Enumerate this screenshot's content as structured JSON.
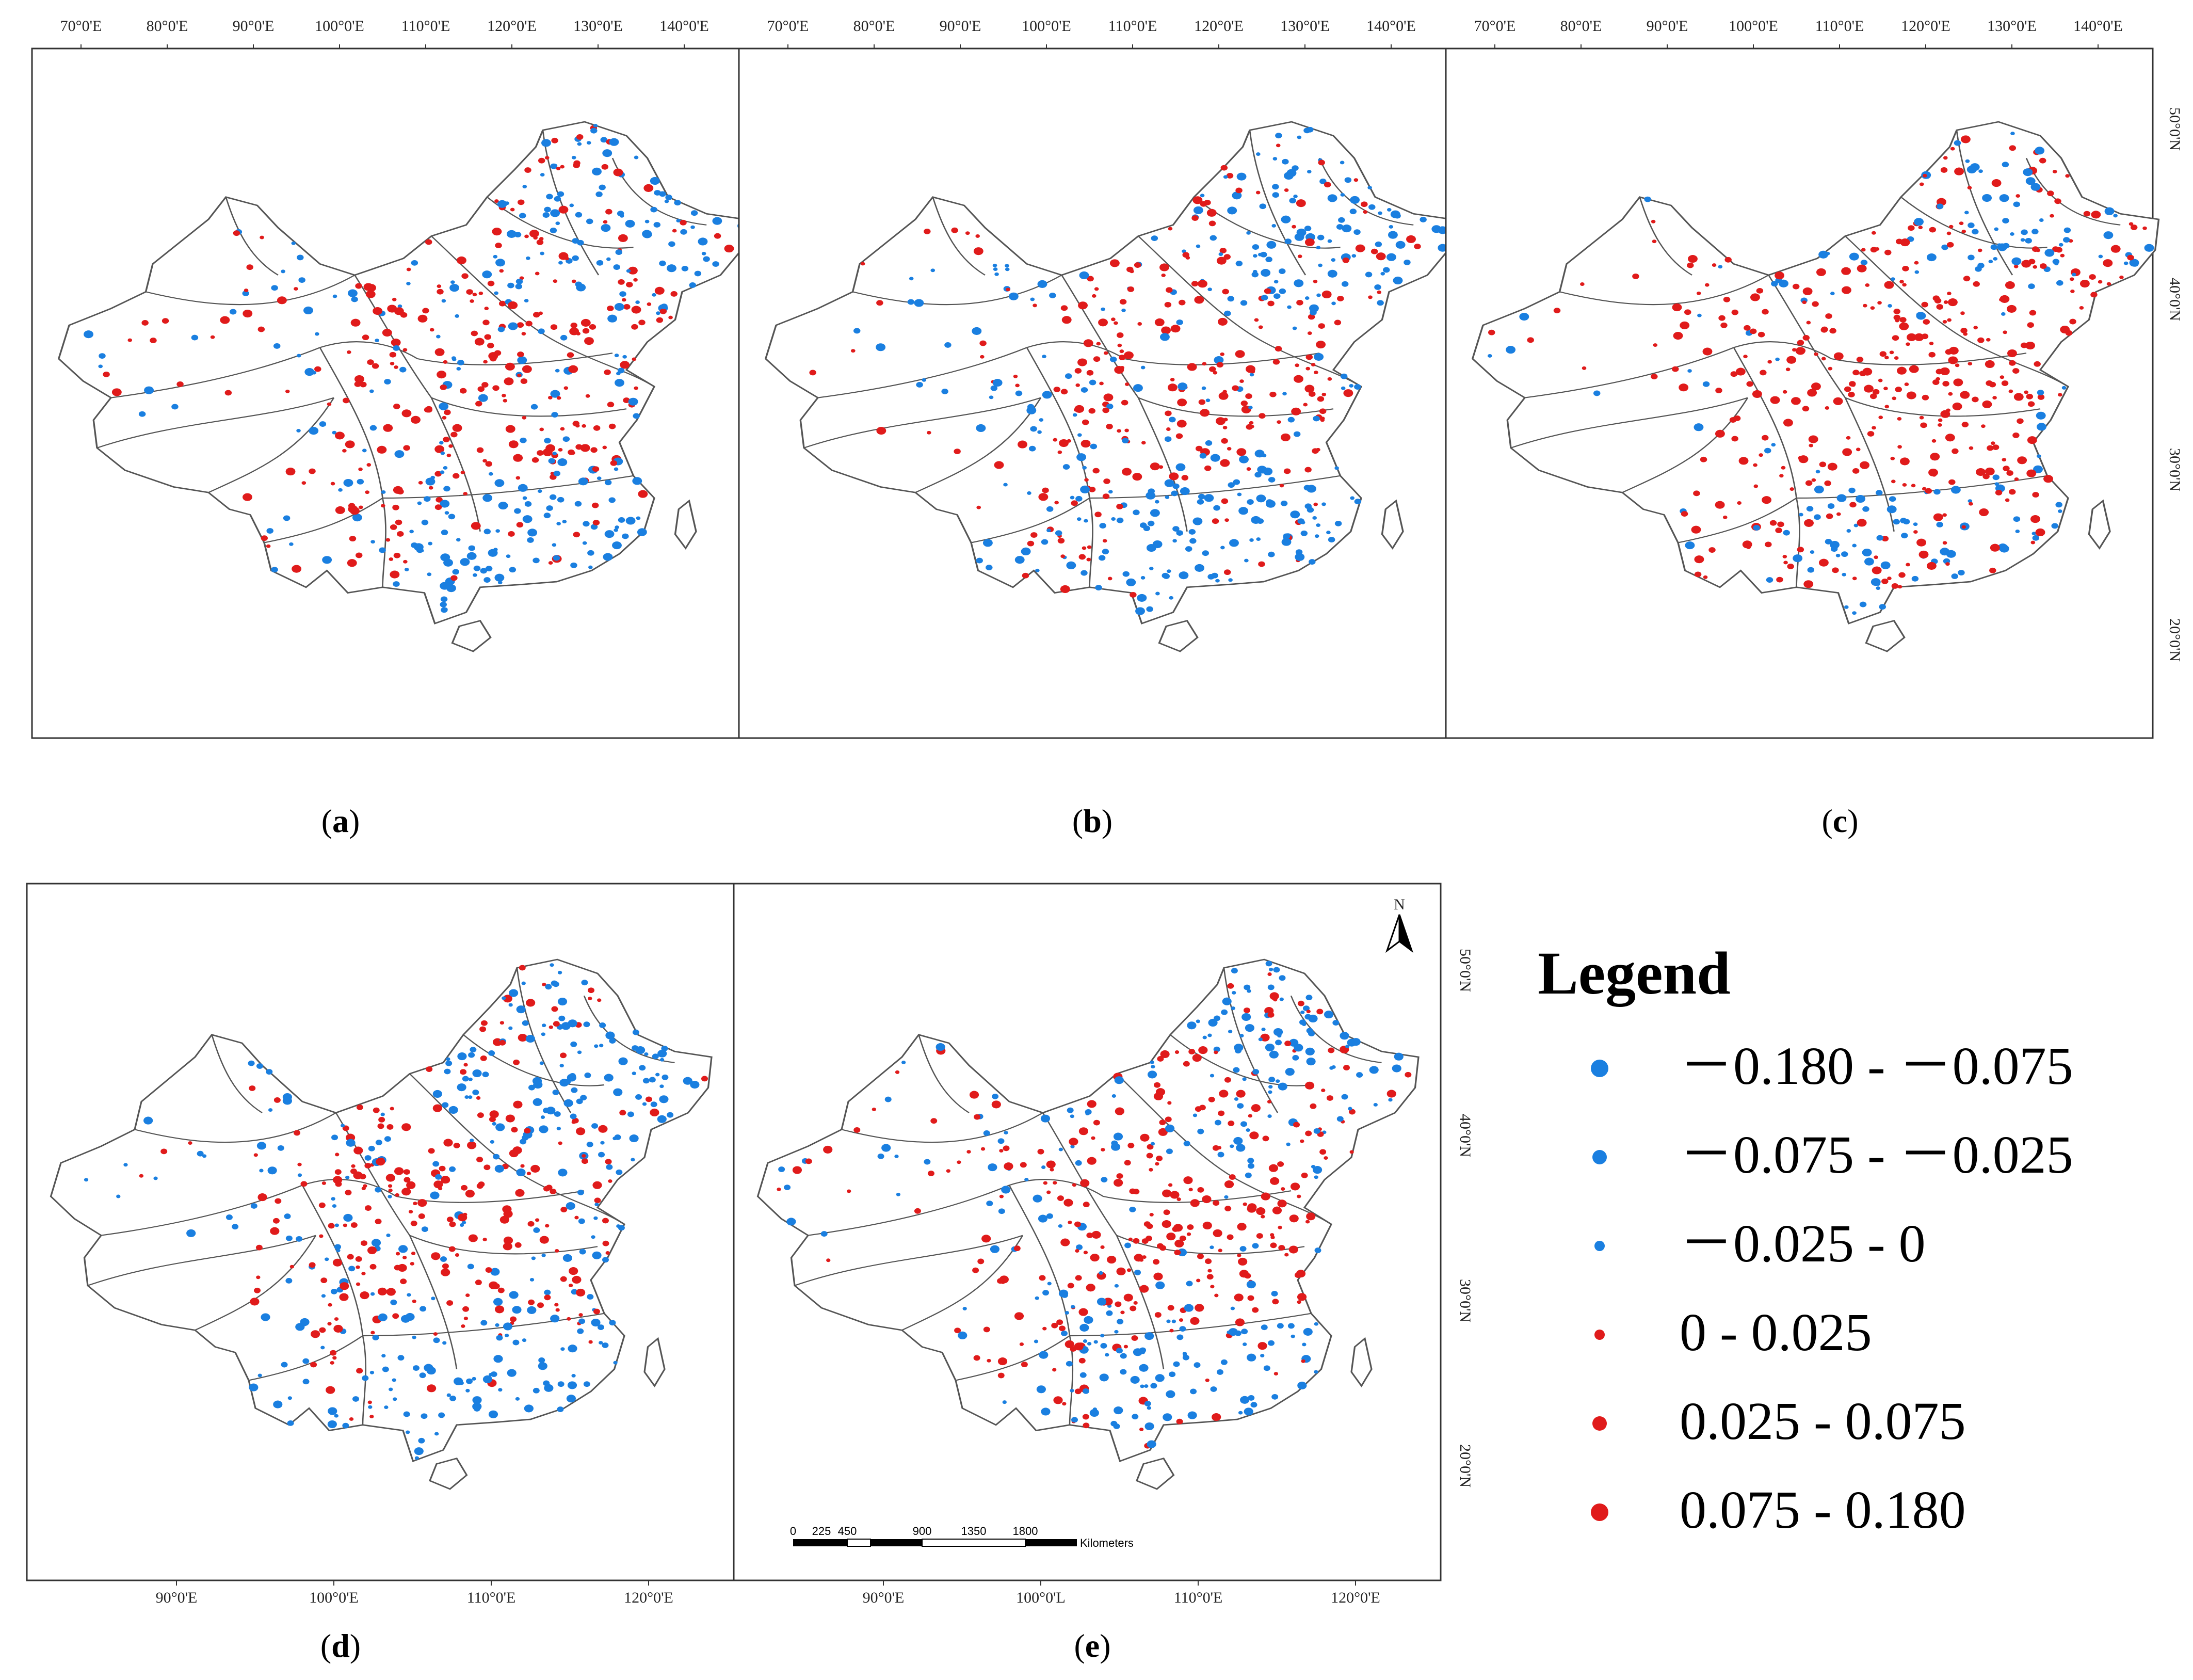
{
  "figure": {
    "panels": [
      {
        "id": "a",
        "label": "(a)",
        "letter": "a",
        "seed": 11,
        "redbias": 0.55
      },
      {
        "id": "b",
        "label": "(b)",
        "letter": "b",
        "seed": 23,
        "redbias": 0.5
      },
      {
        "id": "c",
        "label": "(c)",
        "letter": "c",
        "seed": 37,
        "redbias": 0.75
      },
      {
        "id": "d",
        "label": "(d)",
        "letter": "d",
        "seed": 51,
        "redbias": 0.45
      },
      {
        "id": "e",
        "label": "(e)",
        "letter": "e",
        "seed": 67,
        "redbias": 0.55
      }
    ],
    "top_lon_ticks": [
      "70°0'E",
      "80°0'E",
      "90°0'E",
      "100°0'E",
      "110°0'E",
      "120°0'E",
      "130°0'E",
      "140°0'E"
    ],
    "bottom_lon_ticks": [
      "90°0'E",
      "100°0'E",
      "110°0'E",
      "120°0'E"
    ],
    "bottom_lon_ticks_e": [
      "90°0'E",
      "100°0'L",
      "110°0'E",
      "120°0'E"
    ],
    "lat_ticks_top": [
      "50°0'N",
      "40°0'N",
      "30°0'N",
      "20°0'N"
    ],
    "lat_ticks_bottom": [
      "50°0'N",
      "40°0'N",
      "30°0'N",
      "20°0'N"
    ],
    "north_arrow": "N",
    "scale_bar": {
      "ticks": [
        "0",
        "225",
        "450",
        "900",
        "1350",
        "1800"
      ],
      "unit": "Kilometers"
    }
  },
  "legend": {
    "title": "Legend",
    "items": [
      {
        "label": "－0.180 - －0.075",
        "color": "#1a7fe0",
        "size": "large"
      },
      {
        "label": "－0.075 - －0.025",
        "color": "#1a7fe0",
        "size": "medium"
      },
      {
        "label": "－0.025 - 0",
        "color": "#1a7fe0",
        "size": "small"
      },
      {
        "label": "0 - 0.025",
        "color": "#e01b1b",
        "size": "small"
      },
      {
        "label": "0.025 - 0.075",
        "color": "#e01b1b",
        "size": "medium"
      },
      {
        "label": "0.075 - 0.180",
        "color": "#e01b1b",
        "size": "large"
      }
    ]
  },
  "colors": {
    "blue": "#1a7fe0",
    "red": "#e01b1b",
    "outline": "#555555"
  }
}
